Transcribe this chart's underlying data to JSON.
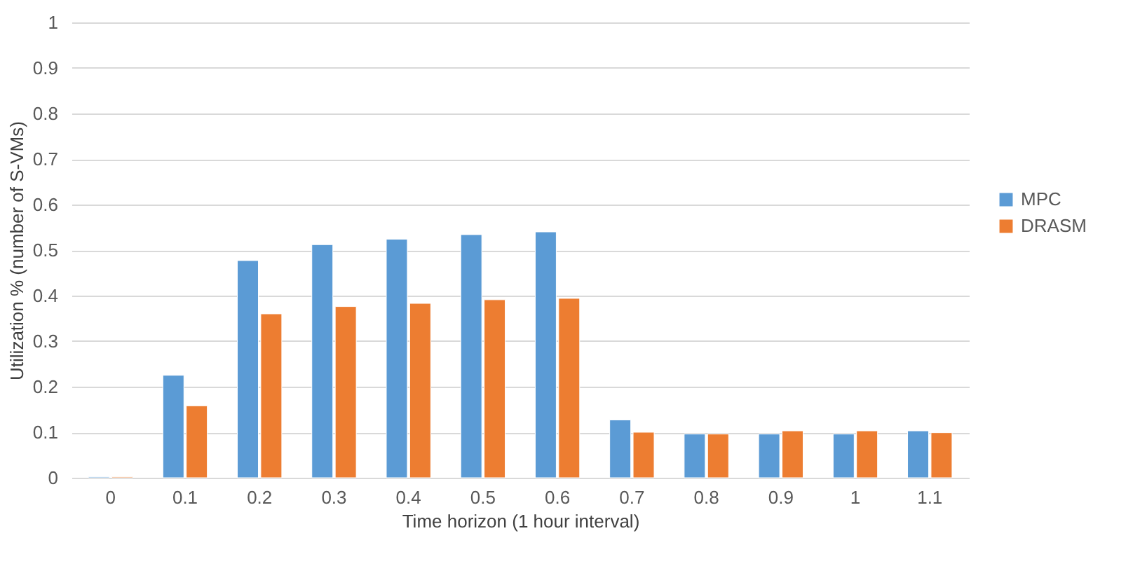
{
  "chart_data": {
    "type": "bar",
    "xlabel": "Time horizon (1 hour interval)",
    "ylabel": "Utilization % (number of S-VMs)",
    "categories": [
      "0",
      "0.1",
      "0.2",
      "0.3",
      "0.4",
      "0.5",
      "0.6",
      "0.7",
      "0.8",
      "0.9",
      "1",
      "1.1"
    ],
    "series": [
      {
        "name": "MPC",
        "color": "#5b9bd5",
        "values": [
          0.002,
          0.225,
          0.477,
          0.512,
          0.524,
          0.534,
          0.54,
          0.127,
          0.096,
          0.096,
          0.096,
          0.103
        ]
      },
      {
        "name": "DRASM",
        "color": "#ed7d31",
        "values": [
          0.002,
          0.158,
          0.36,
          0.376,
          0.383,
          0.391,
          0.394,
          0.1,
          0.096,
          0.103,
          0.103,
          0.099
        ]
      }
    ],
    "ylim": [
      0,
      1
    ],
    "yticks": [
      0,
      0.1,
      0.2,
      0.3,
      0.4,
      0.5,
      0.6,
      0.7,
      0.8,
      0.9,
      1
    ],
    "grid": "y",
    "legend": "right"
  }
}
